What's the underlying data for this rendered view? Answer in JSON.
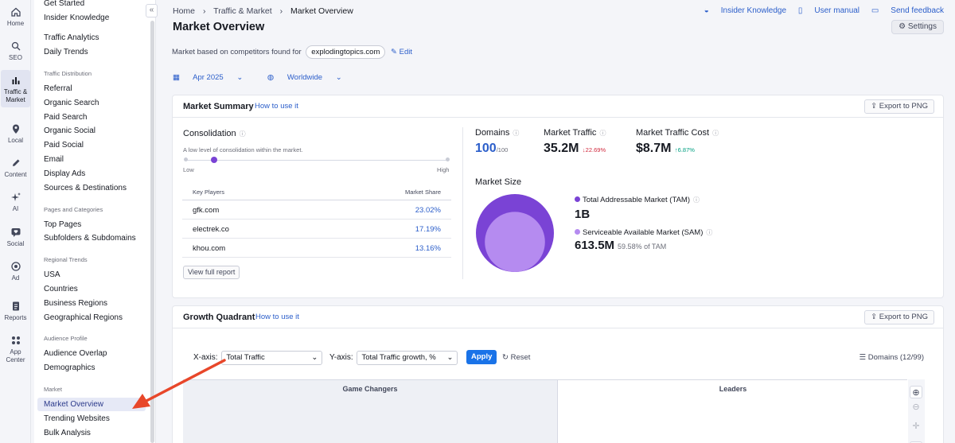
{
  "rail": {
    "items": [
      {
        "label": "Home",
        "icon": "home-icon"
      },
      {
        "label": "SEO",
        "icon": "seo-icon"
      },
      {
        "label": "Traffic &",
        "label2": "Market",
        "icon": "bar-chart-icon"
      },
      {
        "label": "Local",
        "icon": "pin-icon"
      },
      {
        "label": "Content",
        "icon": "pencil-icon"
      },
      {
        "label": "AI",
        "icon": "sparkle-icon"
      },
      {
        "label": "Social",
        "icon": "heart-chat-icon"
      },
      {
        "label": "Ad",
        "icon": "target-icon"
      },
      {
        "label": "Reports",
        "icon": "report-icon"
      },
      {
        "label": "App",
        "label2": "Center",
        "icon": "grid-icon"
      }
    ]
  },
  "subnav": {
    "top_links": [
      "Get Started",
      "Insider Knowledge"
    ],
    "links_a": [
      "Traffic Analytics",
      "Daily Trends"
    ],
    "traffic_distribution": {
      "heading": "Traffic Distribution",
      "items": [
        "Referral",
        "Organic Search",
        "Paid Search",
        "Organic Social",
        "Paid Social",
        "Email",
        "Display Ads",
        "Sources & Destinations"
      ]
    },
    "pages_categories": {
      "heading": "Pages and Categories",
      "items": [
        "Top Pages",
        "Subfolders & Subdomains"
      ]
    },
    "regional": {
      "heading": "Regional Trends",
      "items": [
        "USA",
        "Countries",
        "Business Regions",
        "Geographical Regions"
      ]
    },
    "audience": {
      "heading": "Audience Profile",
      "items": [
        "Audience Overlap",
        "Demographics"
      ]
    },
    "market": {
      "heading": "Market",
      "items": [
        "Market Overview",
        "Trending Websites",
        "Bulk Analysis"
      ]
    },
    "collapse_glyph": "«"
  },
  "header": {
    "breadcrumb": [
      "Home",
      "Traffic & Market",
      "Market Overview"
    ],
    "title": "Market Overview",
    "links": [
      "Insider Knowledge",
      "User manual",
      "Send feedback"
    ],
    "settings": "Settings",
    "based_on": "Market based on competitors found for",
    "domain": "explodingtopics.com",
    "edit": "Edit",
    "date_filter": "Apr 2025",
    "region_filter": "Worldwide"
  },
  "summary": {
    "title": "Market Summary",
    "how_to": "How to use it",
    "export": "Export to PNG",
    "consolidation": {
      "title": "Consolidation",
      "description": "A low level of consolidation within the market.",
      "low": "Low",
      "high": "High",
      "level": 0.11
    },
    "key_players": {
      "col1": "Key Players",
      "col2": "Market Share",
      "rows": [
        {
          "domain": "gfk.com",
          "share": "23.02%"
        },
        {
          "domain": "electrek.co",
          "share": "17.19%"
        },
        {
          "domain": "khou.com",
          "share": "13.16%"
        }
      ]
    },
    "full_report": "View full report",
    "domains": {
      "label": "Domains",
      "value": "100",
      "suffix": "/100"
    },
    "traffic": {
      "label": "Market Traffic",
      "value": "35.2M",
      "change": "↓22.69%"
    },
    "cost": {
      "label": "Market Traffic Cost",
      "value": "$8.7M",
      "change": "↑6.87%"
    },
    "market_size": {
      "title": "Market Size",
      "tam_label": "Total Addressable Market (TAM)",
      "tam_value": "1B",
      "sam_label": "Serviceable Available Market (SAM)",
      "sam_value": "613.5M",
      "sam_sub": "59.58% of TAM",
      "sam_fraction": 0.5958
    }
  },
  "growth": {
    "title": "Growth Quadrant",
    "how_to": "How to use it",
    "export": "Export to PNG",
    "x_label": "X-axis:",
    "x_value": "Total Traffic",
    "y_label": "Y-axis:",
    "y_value": "Total Traffic growth, %",
    "apply": "Apply",
    "reset": "Reset",
    "domains": "Domains (12/99)",
    "quad_left": "Game Changers",
    "quad_right": "Leaders"
  },
  "colors": {
    "accent": "#2b5eca",
    "tam": "#7a43d5",
    "sam": "#b58bf0",
    "negative": "#d1293d",
    "positive": "#009f81",
    "annotation_arrow": "#e8472a"
  }
}
